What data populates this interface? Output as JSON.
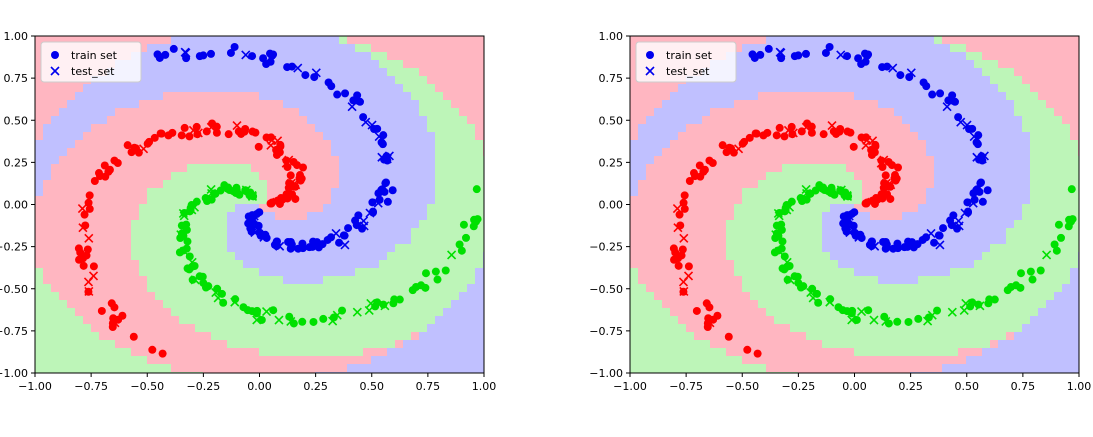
{
  "chart_data": [
    {
      "type": "scatter",
      "xlim": [
        -1.0,
        1.0
      ],
      "ylim": [
        -1.0,
        1.0
      ],
      "xticks": [
        "−1.00",
        "−0.75",
        "−0.50",
        "−0.25",
        "0.00",
        "0.25",
        "0.50",
        "0.75",
        "1.00"
      ],
      "yticks": [
        "−1.00",
        "−0.75",
        "−0.50",
        "−0.25",
        "0.00",
        "0.25",
        "0.50",
        "0.75",
        "1.00"
      ],
      "legend": {
        "position": "top-left",
        "entries": [
          {
            "label": "train set",
            "marker": "circle"
          },
          {
            "label": "test_set",
            "marker": "x"
          }
        ]
      },
      "classes": [
        {
          "color": "#ff0000",
          "region_color": "#ffb6c1"
        },
        {
          "color": "#00e000",
          "region_color": "#bdf5b8"
        },
        {
          "color": "#0000ee",
          "region_color": "#c0c0ff"
        }
      ],
      "description_of_points": "Three interleaved spiral arms (red, green, blue) of train points (circles) and test points (crosses) over classifier decision regions.",
      "series": [
        {
          "name": "train set",
          "values": []
        },
        {
          "name": "test_set",
          "values": []
        }
      ]
    },
    {
      "type": "scatter",
      "xlim": [
        -1.0,
        1.0
      ],
      "ylim": [
        -1.0,
        1.0
      ],
      "xticks": [
        "−1.00",
        "−0.75",
        "−0.50",
        "−0.25",
        "0.00",
        "0.25",
        "0.50",
        "0.75",
        "1.00"
      ],
      "yticks": [
        "−1.00",
        "−0.75",
        "−0.50",
        "−0.25",
        "0.00",
        "0.25",
        "0.50",
        "0.75",
        "1.00"
      ],
      "legend": {
        "position": "top-left",
        "entries": [
          {
            "label": "train set",
            "marker": "circle"
          },
          {
            "label": "test_set",
            "marker": "x"
          }
        ]
      },
      "classes": [
        {
          "color": "#ff0000",
          "region_color": "#ffb6c1"
        },
        {
          "color": "#00e000",
          "region_color": "#bdf5b8"
        },
        {
          "color": "#0000ee",
          "region_color": "#c0c0ff"
        }
      ]
    }
  ]
}
